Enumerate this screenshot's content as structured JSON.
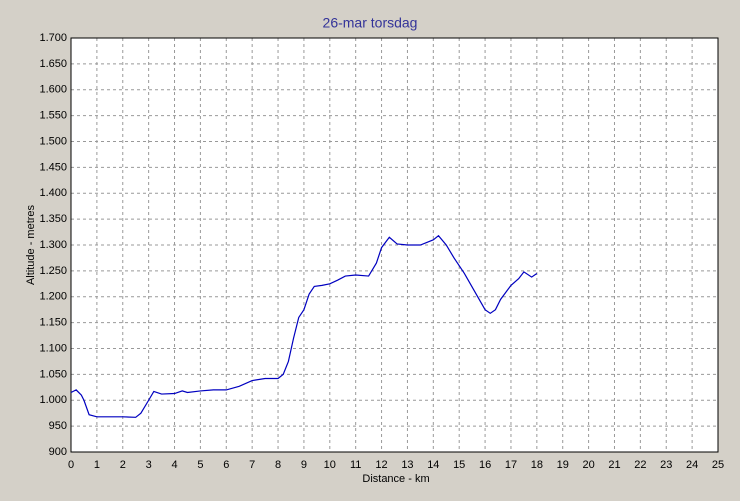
{
  "chart_data": {
    "type": "line",
    "title": "26-mar torsdag",
    "x_label": "Distance - km",
    "y_label": "Altitude - metres",
    "series": [
      {
        "name": "Altitude",
        "color": "#0000c0",
        "x": [
          0,
          0.2,
          0.4,
          0.5,
          0.7,
          1.0,
          1.5,
          2.0,
          2.5,
          2.7,
          3.0,
          3.2,
          3.5,
          4.0,
          4.3,
          4.5,
          5.0,
          5.5,
          6.0,
          6.5,
          7.0,
          7.5,
          8.0,
          8.2,
          8.4,
          8.6,
          8.8,
          9.0,
          9.2,
          9.4,
          9.7,
          10.0,
          10.3,
          10.6,
          11.0,
          11.5,
          11.8,
          12.0,
          12.3,
          12.6,
          13.0,
          13.5,
          14.0,
          14.2,
          14.5,
          14.8,
          15.2,
          15.6,
          16.0,
          16.2,
          16.4,
          16.6,
          17.0,
          17.3,
          17.5,
          17.8,
          18.0
        ],
        "values": [
          1015,
          1020,
          1010,
          1000,
          972,
          968,
          968,
          968,
          967,
          975,
          1000,
          1017,
          1012,
          1013,
          1018,
          1015,
          1018,
          1020,
          1020,
          1027,
          1038,
          1042,
          1042,
          1050,
          1075,
          1120,
          1160,
          1175,
          1205,
          1220,
          1222,
          1225,
          1232,
          1240,
          1242,
          1240,
          1265,
          1295,
          1315,
          1302,
          1300,
          1300,
          1310,
          1318,
          1300,
          1275,
          1245,
          1210,
          1175,
          1168,
          1175,
          1195,
          1222,
          1235,
          1248,
          1238,
          1245
        ]
      }
    ],
    "xlim": [
      0,
      25
    ],
    "xticks": [
      0,
      1,
      2,
      3,
      4,
      5,
      6,
      7,
      8,
      9,
      10,
      11,
      12,
      13,
      14,
      15,
      16,
      17,
      18,
      19,
      20,
      21,
      22,
      23,
      24,
      25
    ],
    "ylim": [
      900,
      1700
    ],
    "yticks": [
      900,
      950,
      {
        "value": 1000,
        "label": "1.000"
      },
      {
        "value": 1050,
        "label": "1.050"
      },
      {
        "value": 1100,
        "label": "1.100"
      },
      {
        "value": 1150,
        "label": "1.150"
      },
      {
        "value": 1200,
        "label": "1.200"
      },
      {
        "value": 1250,
        "label": "1.250"
      },
      {
        "value": 1300,
        "label": "1.300"
      },
      {
        "value": 1350,
        "label": "1.350"
      },
      {
        "value": 1400,
        "label": "1.400"
      },
      {
        "value": 1450,
        "label": "1.450"
      },
      {
        "value": 1500,
        "label": "1.500"
      },
      {
        "value": 1550,
        "label": "1.550"
      },
      {
        "value": 1600,
        "label": "1.600"
      },
      {
        "value": 1650,
        "label": "1.650"
      },
      {
        "value": 1700,
        "label": "1.700"
      }
    ],
    "grid": true
  }
}
